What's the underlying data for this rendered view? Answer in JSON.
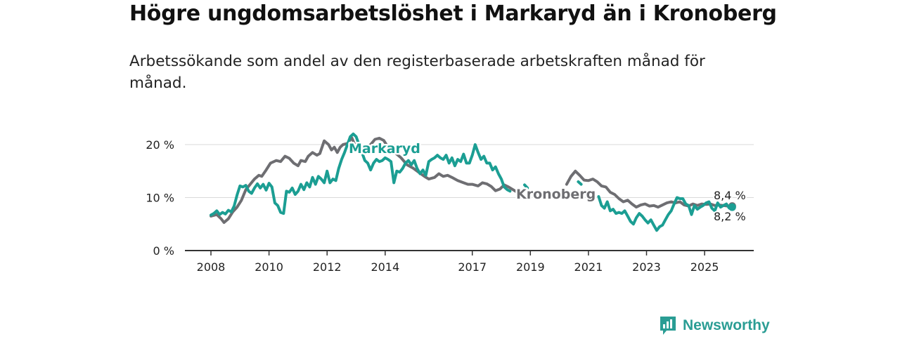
{
  "title": "Högre ungdomsarbetslöshet i Markaryd än i Kronoberg",
  "subtitle": "Arbetssökande som andel av den registerbaserade arbetskraften månad för månad.",
  "brand": {
    "name": "Newsworthy",
    "icon": "bar-chart-logo-icon"
  },
  "colors": {
    "markaryd": "#1b9e93",
    "kronoberg": "#6e6e72",
    "grid": "#d9d9d9",
    "axis": "#333333"
  },
  "chart_data": {
    "type": "line",
    "title": "Högre ungdomsarbetslöshet i Markaryd än i Kronoberg",
    "xlabel": "",
    "ylabel": "",
    "ylim": [
      0,
      25
    ],
    "y_ticks": [
      {
        "value": 0,
        "label": "0 %"
      },
      {
        "value": 10,
        "label": "10 %"
      },
      {
        "value": 20,
        "label": "20 %"
      }
    ],
    "x_range": [
      2008.0,
      2026.0
    ],
    "x_ticks": [
      {
        "value": 2008,
        "label": "2008"
      },
      {
        "value": 2010,
        "label": "2010"
      },
      {
        "value": 2012,
        "label": "2012"
      },
      {
        "value": 2014,
        "label": "2014"
      },
      {
        "value": 2017,
        "label": "2017"
      },
      {
        "value": 2019,
        "label": "2019"
      },
      {
        "value": 2021,
        "label": "2021"
      },
      {
        "value": 2023,
        "label": "2023"
      },
      {
        "value": 2025,
        "label": "2025"
      }
    ],
    "series": [
      {
        "name": "Kronoberg",
        "label": "Kronoberg",
        "end_label": "8,4 %",
        "points": [
          [
            2008.0,
            6.5
          ],
          [
            2008.2,
            6.8
          ],
          [
            2008.35,
            6.0
          ],
          [
            2008.45,
            5.3
          ],
          [
            2008.6,
            6.0
          ],
          [
            2008.75,
            7.3
          ],
          [
            2008.9,
            8.2
          ],
          [
            2009.05,
            9.5
          ],
          [
            2009.2,
            11.5
          ],
          [
            2009.35,
            12.5
          ],
          [
            2009.5,
            13.5
          ],
          [
            2009.65,
            14.2
          ],
          [
            2009.75,
            14.0
          ],
          [
            2009.9,
            15.2
          ],
          [
            2010.05,
            16.5
          ],
          [
            2010.25,
            17.0
          ],
          [
            2010.4,
            16.8
          ],
          [
            2010.55,
            17.8
          ],
          [
            2010.7,
            17.4
          ],
          [
            2010.85,
            16.5
          ],
          [
            2011.0,
            16.0
          ],
          [
            2011.1,
            17.0
          ],
          [
            2011.25,
            16.8
          ],
          [
            2011.35,
            17.8
          ],
          [
            2011.5,
            18.5
          ],
          [
            2011.65,
            18.0
          ],
          [
            2011.75,
            18.3
          ],
          [
            2011.9,
            20.7
          ],
          [
            2012.05,
            20.0
          ],
          [
            2012.15,
            19.0
          ],
          [
            2012.25,
            19.5
          ],
          [
            2012.35,
            18.5
          ],
          [
            2012.45,
            19.5
          ],
          [
            2012.55,
            20.0
          ],
          [
            2012.7,
            20.2
          ],
          [
            2012.85,
            21.3
          ],
          [
            2012.95,
            20.0
          ],
          [
            2013.05,
            19.8
          ],
          [
            2013.15,
            19.0
          ],
          [
            2013.25,
            18.5
          ],
          [
            2013.35,
            19.5
          ],
          [
            2013.5,
            20.0
          ],
          [
            2013.65,
            21.0
          ],
          [
            2013.8,
            21.2
          ],
          [
            2013.95,
            20.8
          ],
          [
            2014.1,
            19.5
          ],
          [
            2014.25,
            19.0
          ],
          [
            2014.4,
            18.2
          ],
          [
            2014.55,
            17.5
          ],
          [
            2014.75,
            16.2
          ],
          [
            2014.95,
            15.6
          ],
          [
            2015.15,
            14.8
          ],
          [
            2015.35,
            14.0
          ],
          [
            2015.5,
            13.5
          ],
          [
            2015.7,
            13.8
          ],
          [
            2015.85,
            14.5
          ],
          [
            2016.0,
            14.0
          ],
          [
            2016.15,
            14.2
          ],
          [
            2016.3,
            13.8
          ],
          [
            2016.5,
            13.2
          ],
          [
            2016.7,
            12.8
          ],
          [
            2016.85,
            12.5
          ],
          [
            2017.0,
            12.5
          ],
          [
            2017.2,
            12.2
          ],
          [
            2017.35,
            12.8
          ],
          [
            2017.5,
            12.6
          ],
          [
            2017.65,
            12.1
          ],
          [
            2017.8,
            11.3
          ],
          [
            2017.95,
            11.6
          ],
          [
            2018.1,
            12.4
          ],
          [
            2018.25,
            12.0
          ],
          [
            2018.4,
            11.5
          ],
          [
            2018.55,
            11.0
          ],
          [
            2018.7,
            10.3
          ],
          [
            2018.75,
            10.0
          ],
          null,
          [
            2020.25,
            12.5
          ],
          [
            2020.4,
            14.0
          ],
          [
            2020.55,
            15.0
          ],
          [
            2020.7,
            14.2
          ],
          [
            2020.85,
            13.3
          ],
          [
            2021.0,
            13.2
          ],
          [
            2021.15,
            13.5
          ],
          [
            2021.3,
            13.0
          ],
          [
            2021.45,
            12.2
          ],
          [
            2021.6,
            12.0
          ],
          [
            2021.75,
            11.0
          ],
          [
            2021.9,
            10.6
          ],
          [
            2022.05,
            9.8
          ],
          [
            2022.2,
            9.2
          ],
          [
            2022.35,
            9.5
          ],
          [
            2022.5,
            8.8
          ],
          [
            2022.65,
            8.2
          ],
          [
            2022.8,
            8.6
          ],
          [
            2022.95,
            8.8
          ],
          [
            2023.1,
            8.4
          ],
          [
            2023.25,
            8.5
          ],
          [
            2023.4,
            8.2
          ],
          [
            2023.55,
            8.6
          ],
          [
            2023.7,
            9.0
          ],
          [
            2023.85,
            9.2
          ],
          [
            2024.0,
            9.0
          ],
          [
            2024.15,
            9.2
          ],
          [
            2024.3,
            8.6
          ],
          [
            2024.45,
            8.4
          ],
          [
            2024.6,
            8.8
          ],
          [
            2024.75,
            8.5
          ],
          [
            2024.9,
            8.8
          ],
          [
            2025.05,
            8.7
          ],
          [
            2025.2,
            8.8
          ],
          [
            2025.35,
            8.5
          ],
          [
            2025.5,
            8.6
          ],
          [
            2025.65,
            8.5
          ],
          [
            2025.8,
            8.4
          ],
          [
            2025.95,
            8.4
          ]
        ]
      },
      {
        "name": "Markaryd",
        "label": "Markaryd",
        "end_label": "8,2 %",
        "points": [
          [
            2008.0,
            6.7
          ],
          [
            2008.1,
            7.0
          ],
          [
            2008.2,
            7.5
          ],
          [
            2008.3,
            6.8
          ],
          [
            2008.4,
            7.2
          ],
          [
            2008.5,
            6.9
          ],
          [
            2008.6,
            7.6
          ],
          [
            2008.7,
            7.3
          ],
          [
            2008.8,
            8.4
          ],
          [
            2008.9,
            10.5
          ],
          [
            2009.0,
            12.2
          ],
          [
            2009.1,
            12.0
          ],
          [
            2009.2,
            12.3
          ],
          [
            2009.3,
            11.2
          ],
          [
            2009.4,
            10.8
          ],
          [
            2009.5,
            11.8
          ],
          [
            2009.6,
            12.6
          ],
          [
            2009.7,
            11.8
          ],
          [
            2009.8,
            12.5
          ],
          [
            2009.9,
            11.4
          ],
          [
            2010.0,
            12.7
          ],
          [
            2010.1,
            12.0
          ],
          [
            2010.2,
            9.0
          ],
          [
            2010.3,
            8.5
          ],
          [
            2010.4,
            7.2
          ],
          [
            2010.5,
            7.0
          ],
          [
            2010.6,
            11.2
          ],
          [
            2010.7,
            11.0
          ],
          [
            2010.8,
            11.8
          ],
          [
            2010.9,
            10.6
          ],
          [
            2011.0,
            11.2
          ],
          [
            2011.1,
            12.5
          ],
          [
            2011.2,
            11.5
          ],
          [
            2011.3,
            12.8
          ],
          [
            2011.4,
            12.0
          ],
          [
            2011.5,
            13.8
          ],
          [
            2011.6,
            12.5
          ],
          [
            2011.7,
            14.0
          ],
          [
            2011.8,
            13.5
          ],
          [
            2011.9,
            12.8
          ],
          [
            2012.0,
            15.0
          ],
          [
            2012.1,
            12.8
          ],
          [
            2012.2,
            13.5
          ],
          [
            2012.3,
            13.2
          ],
          [
            2012.4,
            15.5
          ],
          [
            2012.5,
            17.2
          ],
          [
            2012.6,
            18.5
          ],
          [
            2012.7,
            20.0
          ],
          [
            2012.8,
            21.5
          ],
          [
            2012.9,
            22.0
          ],
          [
            2013.0,
            21.5
          ],
          [
            2013.1,
            20.0
          ],
          [
            2013.2,
            18.5
          ],
          [
            2013.3,
            17.0
          ],
          [
            2013.4,
            16.5
          ],
          [
            2013.5,
            15.2
          ],
          [
            2013.6,
            16.5
          ],
          [
            2013.7,
            17.2
          ],
          [
            2013.8,
            16.8
          ],
          [
            2013.9,
            17.0
          ],
          [
            2014.0,
            17.5
          ],
          [
            2014.1,
            17.2
          ],
          [
            2014.2,
            16.8
          ],
          [
            2014.3,
            12.8
          ],
          [
            2014.4,
            15.0
          ],
          [
            2014.5,
            14.8
          ],
          [
            2014.6,
            15.5
          ],
          [
            2014.7,
            16.5
          ],
          [
            2014.8,
            17.0
          ],
          [
            2014.9,
            16.2
          ],
          [
            2015.0,
            17.0
          ],
          [
            2015.1,
            15.5
          ],
          [
            2015.2,
            14.5
          ],
          [
            2015.3,
            15.2
          ],
          [
            2015.4,
            14.2
          ],
          [
            2015.5,
            16.8
          ],
          [
            2015.6,
            17.2
          ],
          [
            2015.7,
            17.5
          ],
          [
            2015.8,
            18.0
          ],
          [
            2015.9,
            17.5
          ],
          [
            2016.0,
            17.2
          ],
          [
            2016.1,
            18.0
          ],
          [
            2016.2,
            16.5
          ],
          [
            2016.3,
            17.5
          ],
          [
            2016.4,
            16.0
          ],
          [
            2016.5,
            17.2
          ],
          [
            2016.6,
            16.8
          ],
          [
            2016.7,
            18.2
          ],
          [
            2016.8,
            16.5
          ],
          [
            2016.9,
            16.5
          ],
          [
            2017.0,
            18.0
          ],
          [
            2017.1,
            20.0
          ],
          [
            2017.2,
            18.5
          ],
          [
            2017.3,
            17.2
          ],
          [
            2017.4,
            17.8
          ],
          [
            2017.5,
            16.5
          ],
          [
            2017.6,
            16.5
          ],
          [
            2017.7,
            15.2
          ],
          [
            2017.8,
            15.8
          ],
          [
            2017.9,
            14.5
          ],
          [
            2018.0,
            13.5
          ],
          [
            2018.1,
            12.0
          ],
          [
            2018.2,
            11.5
          ],
          [
            2018.3,
            11.2
          ],
          null,
          [
            2018.8,
            12.4
          ],
          [
            2018.9,
            11.8
          ],
          null,
          [
            2020.65,
            13.0
          ],
          [
            2020.75,
            12.5
          ],
          null,
          [
            2021.35,
            10.2
          ],
          [
            2021.45,
            8.5
          ],
          [
            2021.55,
            8.0
          ],
          [
            2021.65,
            9.2
          ],
          [
            2021.75,
            7.5
          ],
          [
            2021.85,
            7.8
          ],
          [
            2021.95,
            7.0
          ],
          [
            2022.05,
            7.2
          ],
          [
            2022.15,
            7.0
          ],
          [
            2022.25,
            7.5
          ],
          [
            2022.35,
            6.5
          ],
          [
            2022.45,
            5.5
          ],
          [
            2022.55,
            5.0
          ],
          [
            2022.65,
            6.2
          ],
          [
            2022.75,
            7.0
          ],
          [
            2022.85,
            6.5
          ],
          [
            2022.95,
            5.8
          ],
          [
            2023.05,
            5.2
          ],
          [
            2023.15,
            5.8
          ],
          [
            2023.25,
            4.8
          ],
          [
            2023.35,
            3.8
          ],
          [
            2023.45,
            4.5
          ],
          [
            2023.55,
            4.8
          ],
          [
            2023.65,
            5.8
          ],
          [
            2023.75,
            6.8
          ],
          [
            2023.85,
            7.5
          ],
          [
            2023.95,
            8.8
          ],
          [
            2024.05,
            10.0
          ],
          [
            2024.15,
            9.8
          ],
          [
            2024.25,
            9.8
          ],
          [
            2024.35,
            8.8
          ],
          [
            2024.45,
            8.5
          ],
          [
            2024.55,
            6.8
          ],
          [
            2024.65,
            8.5
          ],
          [
            2024.75,
            7.8
          ],
          [
            2024.85,
            8.2
          ],
          [
            2024.95,
            8.5
          ],
          [
            2025.05,
            9.0
          ],
          [
            2025.15,
            9.2
          ],
          [
            2025.25,
            8.0
          ],
          [
            2025.35,
            7.5
          ],
          [
            2025.45,
            9.0
          ],
          [
            2025.55,
            8.2
          ],
          [
            2025.65,
            8.5
          ],
          [
            2025.75,
            8.8
          ],
          [
            2025.85,
            8.0
          ],
          [
            2025.95,
            8.2
          ]
        ]
      }
    ]
  }
}
